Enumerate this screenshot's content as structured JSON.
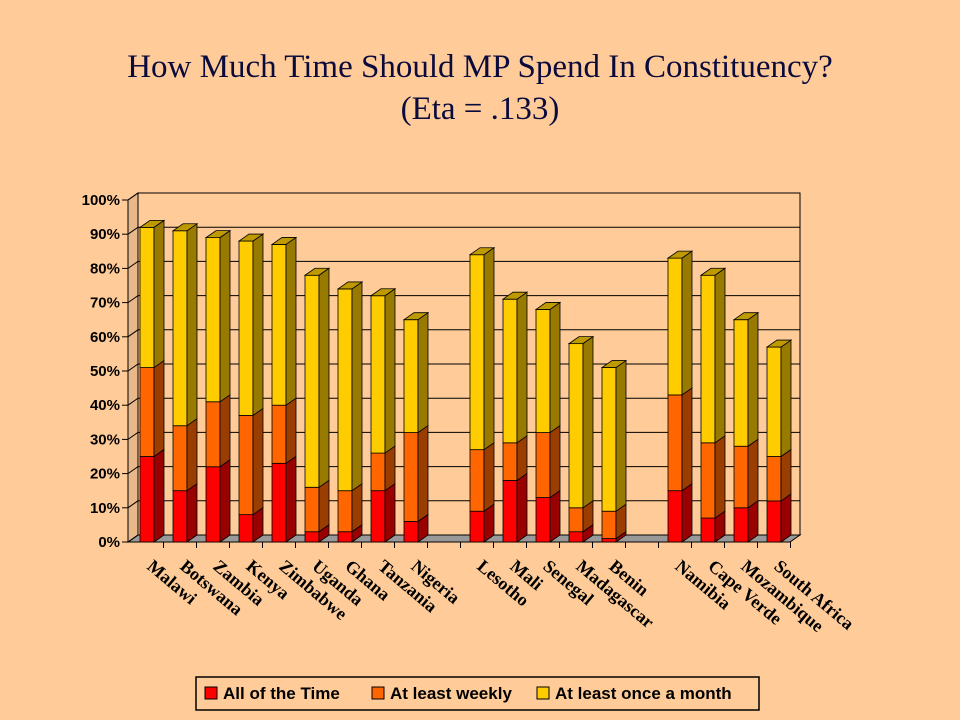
{
  "title_line1": "How Much Time Should MP Spend In Constituency?",
  "title_line2": "(Eta = .133)",
  "chart_data": {
    "type": "bar",
    "stacked": true,
    "title": "How Much Time Should MP Spend In Constituency? (Eta = .133)",
    "xlabel": "",
    "ylabel": "",
    "ylim": [
      0,
      100
    ],
    "yticks": [
      "0%",
      "10%",
      "20%",
      "30%",
      "40%",
      "50%",
      "60%",
      "70%",
      "80%",
      "90%",
      "100%"
    ],
    "grid": true,
    "legend_position": "bottom",
    "categories": [
      "Malawi",
      "Botswana",
      "Zambia",
      "Kenya",
      "Zimbabwe",
      "Uganda",
      "Ghana",
      "Tanzania",
      "Nigeria",
      "",
      "Lesotho",
      "Mali",
      "Senegal",
      "Madagascar",
      "Benin",
      "",
      "Namibia",
      "Cape Verde",
      "Mozambique",
      "South Africa"
    ],
    "series": [
      {
        "name": "All of the Time",
        "color": "#FF0000",
        "values": [
          25,
          15,
          22,
          8,
          23,
          3,
          3,
          15,
          6,
          null,
          9,
          18,
          13,
          3,
          1,
          null,
          15,
          7,
          10,
          12
        ]
      },
      {
        "name": "At least weekly",
        "color": "#FF6600",
        "values": [
          26,
          19,
          19,
          29,
          17,
          13,
          12,
          11,
          26,
          null,
          18,
          11,
          19,
          7,
          8,
          null,
          28,
          22,
          18,
          13
        ]
      },
      {
        "name": "At least once a month",
        "color": "#FFCC00",
        "values": [
          41,
          57,
          48,
          51,
          47,
          62,
          59,
          46,
          33,
          null,
          57,
          42,
          36,
          48,
          42,
          null,
          40,
          49,
          37,
          32
        ]
      }
    ]
  }
}
